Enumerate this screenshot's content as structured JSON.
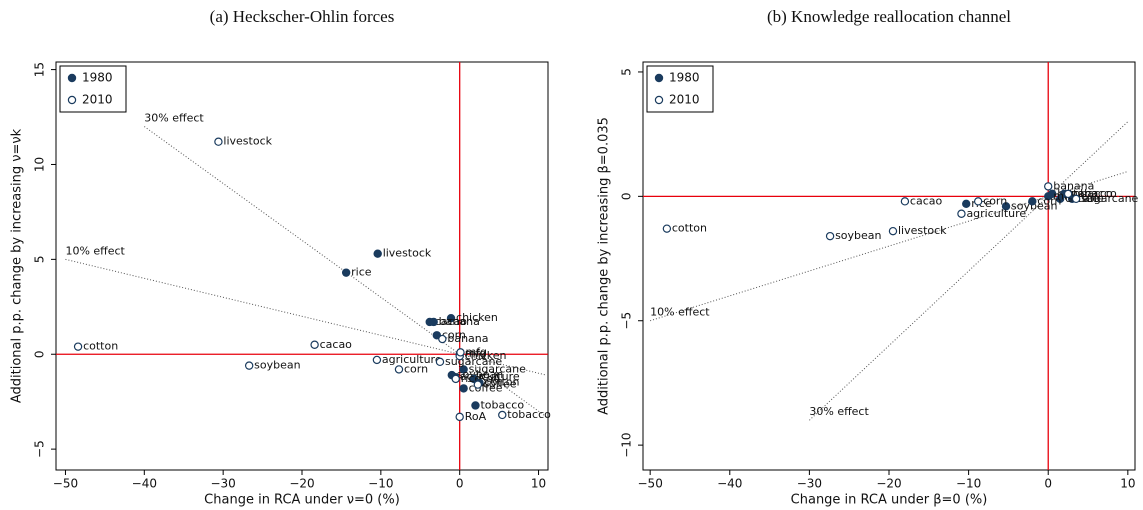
{
  "chart_data": [
    {
      "type": "scatter",
      "title": "(a) Heckscher-Ohlin forces",
      "x_label": "Change in RCA under ν=0 (%)",
      "y_label": "Additional p.p. change by increasing ν=νk",
      "xlim": [
        -51.2,
        11.2
      ],
      "ylim": [
        -6.1,
        15.4
      ],
      "xticks": [
        {
          "value": -50,
          "label": "−50"
        },
        {
          "value": -40,
          "label": "−40"
        },
        {
          "value": -30,
          "label": "−30"
        },
        {
          "value": -20,
          "label": "−20"
        },
        {
          "value": -10,
          "label": "−10"
        },
        0,
        10
      ],
      "yticks": [
        {
          "value": -5,
          "label": "−5"
        },
        0,
        5,
        10,
        15
      ],
      "legend": "top-left",
      "zero_lines": true,
      "zero_line_color": "#e8000b",
      "effect_lines": [
        {
          "label": "30% effect",
          "slope": -0.3,
          "x_start": -40,
          "x_end": 11
        },
        {
          "label": "10% effect",
          "slope": -0.1,
          "x_start": -50,
          "x_end": 11
        }
      ],
      "series": [
        {
          "name": "1980",
          "color": "#1a3b5e",
          "filled": true,
          "x": [
            -10.4,
            -14.4,
            -1.1,
            -3.8,
            -3.3,
            -2.9,
            0,
            0.5,
            -1.0,
            -0.6,
            1.8,
            2.5,
            0.5,
            2.0
          ],
          "y": [
            5.3,
            4.3,
            1.9,
            1.7,
            1.7,
            1.0,
            0,
            -0.8,
            -1.1,
            -1.2,
            -1.3,
            -1.5,
            -1.8,
            -2.7
          ],
          "labels": [
            "livestock",
            "rice",
            "chicken",
            "cacao",
            "banana",
            "corn",
            "mfg",
            "sugarcane",
            "soybean",
            "agriculture",
            "RoA",
            "cotton",
            "coffee",
            "tobacco"
          ]
        },
        {
          "name": "2010",
          "color": "#1a3b5e",
          "filled": false,
          "x": [
            -30.6,
            -18.4,
            -48.4,
            -26.7,
            -10.5,
            -7.7,
            -2.5,
            -2.2,
            0,
            0.1,
            5.4,
            0,
            -0.5,
            2.3
          ],
          "y": [
            11.2,
            0.5,
            0.4,
            -0.6,
            -0.3,
            -0.8,
            -0.4,
            0.8,
            -0.1,
            0.1,
            -3.2,
            -3.3,
            -1.3,
            -1.6
          ],
          "labels": [
            "livestock",
            "cacao",
            "cotton",
            "soybean",
            "agriculture",
            "corn",
            "sugarcane",
            "banana",
            "chicken",
            "mfg",
            "tobacco",
            "RoA",
            "rice",
            "coffee"
          ]
        }
      ]
    },
    {
      "type": "scatter",
      "title": "(b) Knowledge reallocation channel",
      "x_label": "Change in RCA under β=0 (%)",
      "y_label": "Additional p.p. change by increasing β=0.035",
      "xlim": [
        -50.9,
        10.9
      ],
      "ylim": [
        -11.0,
        5.4
      ],
      "xticks": [
        {
          "value": -50,
          "label": "−50"
        },
        {
          "value": -40,
          "label": "−40"
        },
        {
          "value": -30,
          "label": "−30"
        },
        {
          "value": -20,
          "label": "−20"
        },
        {
          "value": -10,
          "label": "−10"
        },
        0,
        10
      ],
      "yticks": [
        {
          "value": -10,
          "label": "−10"
        },
        {
          "value": -5,
          "label": "−5"
        },
        0,
        5
      ],
      "legend": "top-left",
      "zero_lines": true,
      "zero_line_color": "#e8000b",
      "effect_lines": [
        {
          "label": "10% effect",
          "slope": 0.1,
          "x_start": -50,
          "x_end": 10
        },
        {
          "label": "30% effect",
          "slope": 0.3,
          "x_start": -30,
          "x_end": 10
        }
      ],
      "series": [
        {
          "name": "1980",
          "color": "#1a3b5e",
          "filled": true,
          "x": [
            -10.3,
            -5.3,
            0.5,
            2.0,
            3.0,
            1.5,
            0,
            -2.0
          ],
          "y": [
            -0.3,
            -0.4,
            0.1,
            0.1,
            -0.1,
            -0.1,
            0,
            -0.2
          ],
          "labels": [
            "rice",
            "soybean",
            "banana",
            "tobacco",
            "cane",
            "coffee",
            "mfg",
            "corn"
          ]
        },
        {
          "name": "2010",
          "color": "#1a3b5e",
          "filled": false,
          "x": [
            -47.9,
            -27.4,
            -19.5,
            -18.0,
            -10.9,
            -8.8,
            0,
            2.5,
            3.5
          ],
          "y": [
            -1.3,
            -1.6,
            -1.4,
            -0.2,
            -0.7,
            -0.2,
            0.4,
            0.1,
            -0.1
          ],
          "labels": [
            "cotton",
            "soybean",
            "livestock",
            "cacao",
            "agriculture",
            "corn",
            "banana",
            "tobacco",
            "sugarcane"
          ]
        }
      ]
    }
  ]
}
